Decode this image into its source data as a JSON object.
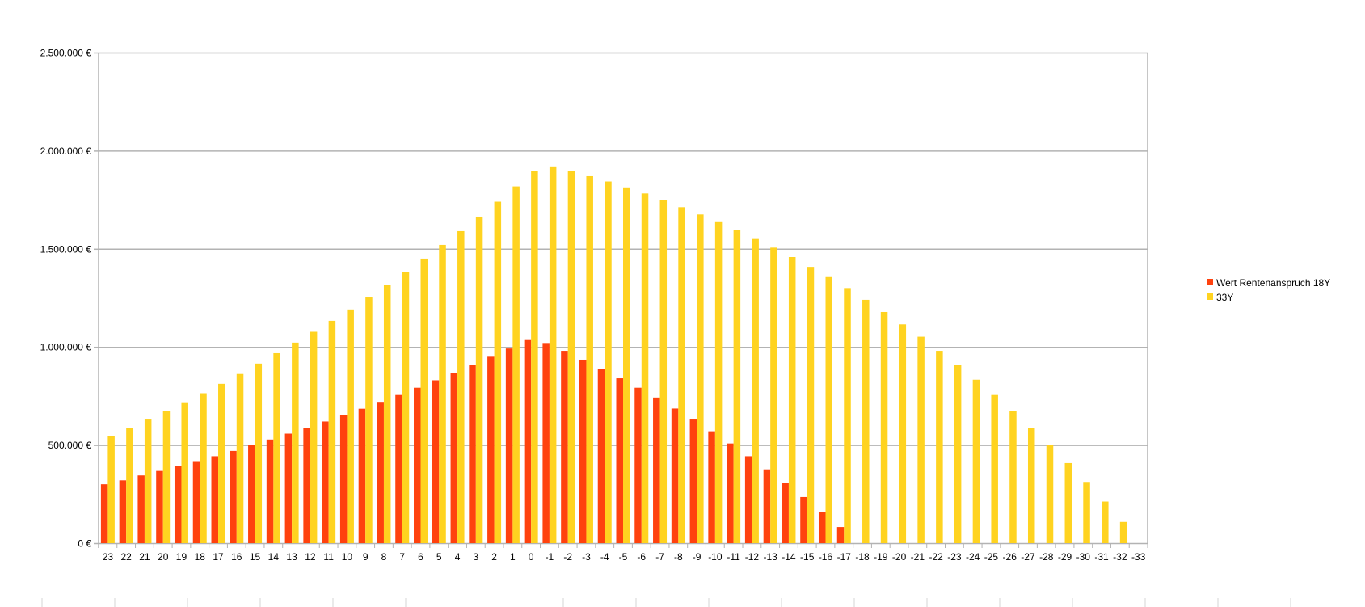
{
  "chart_data": {
    "type": "bar",
    "title": "",
    "xlabel": "",
    "ylabel": "",
    "ylim": [
      0,
      2500000
    ],
    "grid": true,
    "legend_placement": "right",
    "y_ticks": [
      0,
      500000,
      1000000,
      1500000,
      2000000,
      2500000
    ],
    "y_tick_labels": [
      "0 €",
      "500.000 €",
      "1.000.000 €",
      "1.500.000 €",
      "2.000.000 €",
      "2.500.000 €"
    ],
    "categories": [
      "23",
      "22",
      "21",
      "20",
      "19",
      "18",
      "17",
      "16",
      "15",
      "14",
      "13",
      "12",
      "11",
      "10",
      "9",
      "8",
      "7",
      "6",
      "5",
      "4",
      "3",
      "2",
      "1",
      "0",
      "-1",
      "-2",
      "-3",
      "-4",
      "-5",
      "-6",
      "-7",
      "-8",
      "-9",
      "-10",
      "-11",
      "-12",
      "-13",
      "-14",
      "-15",
      "-16",
      "-17",
      "-18",
      "-19",
      "-20",
      "-21",
      "-22",
      "-23",
      "-24",
      "-25",
      "-26",
      "-27",
      "-28",
      "-29",
      "-30",
      "-31",
      "-32",
      "-33"
    ],
    "series": [
      {
        "name": "Wert Rentenanspruch 18Y",
        "color": "#ff420e",
        "values": [
          300000,
          320000,
          345000,
          368000,
          392000,
          418000,
          443000,
          470000,
          500000,
          528000,
          558000,
          588000,
          620000,
          652000,
          685000,
          720000,
          755000,
          792000,
          830000,
          868000,
          908000,
          950000,
          992000,
          1035000,
          1020000,
          980000,
          935000,
          888000,
          840000,
          792000,
          742000,
          686000,
          630000,
          570000,
          508000,
          443000,
          376000,
          308000,
          235000,
          160000,
          82000,
          0,
          0,
          0,
          0,
          0,
          0,
          0,
          0,
          0,
          0,
          0,
          0,
          0,
          0,
          0,
          0
        ]
      },
      {
        "name": "33Y",
        "color": "#ffd320",
        "values": [
          547000,
          588000,
          630000,
          673000,
          718000,
          764000,
          812000,
          862000,
          915000,
          968000,
          1022000,
          1077000,
          1133000,
          1191000,
          1252000,
          1316000,
          1382000,
          1450000,
          1520000,
          1590000,
          1664000,
          1740000,
          1818000,
          1898000,
          1920000,
          1896000,
          1870000,
          1843000,
          1813000,
          1782000,
          1748000,
          1712000,
          1675000,
          1636000,
          1594000,
          1550000,
          1506000,
          1458000,
          1408000,
          1356000,
          1300000,
          1240000,
          1178000,
          1115000,
          1052000,
          980000,
          908000,
          833000,
          755000,
          673000,
          588000,
          500000,
          408000,
          312000,
          212000,
          108000,
          0
        ]
      }
    ]
  }
}
